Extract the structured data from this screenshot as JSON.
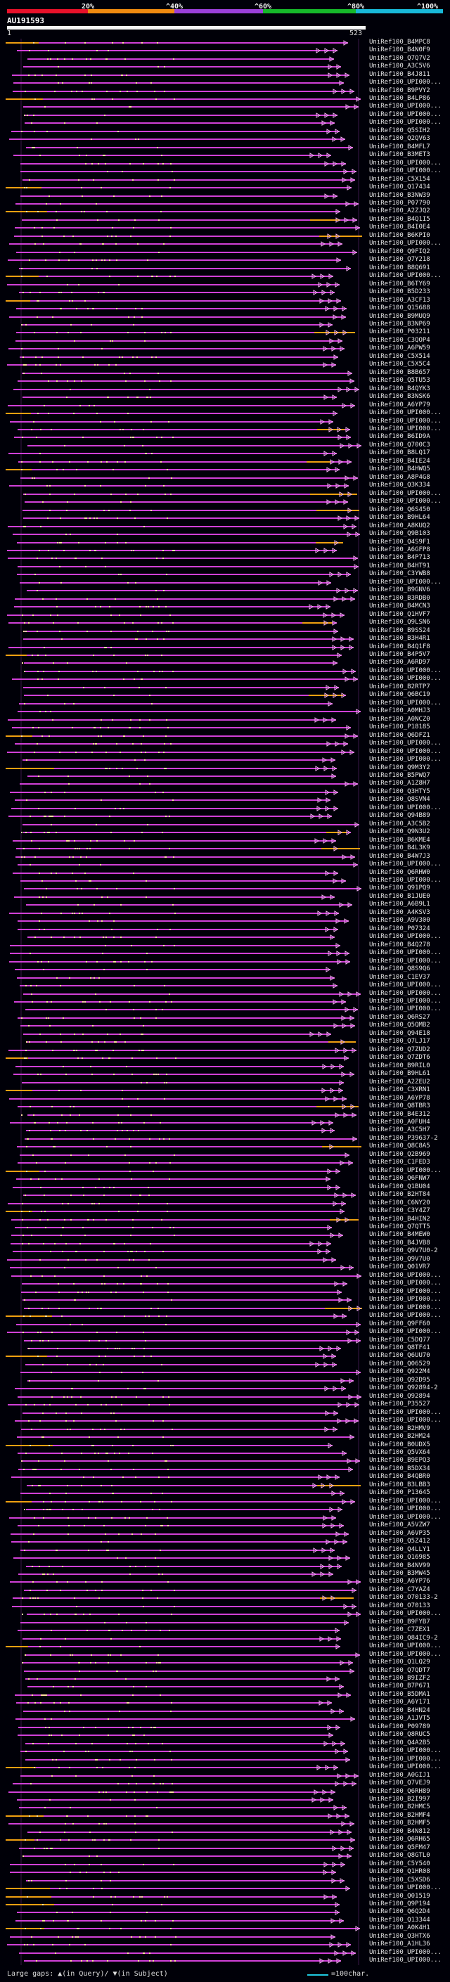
{
  "scale": {
    "ticks": [
      "20%",
      "^40%",
      "^60%",
      "^80%",
      "^100%"
    ],
    "colors": [
      "#e8112a",
      "#f08a10",
      "#9a40d8",
      "#16b82a",
      "#18b8d8"
    ]
  },
  "query": {
    "name": "AU191593",
    "start": "1",
    "end": "523"
  },
  "colors": {
    "hit_line": "#d040d8",
    "gap_in_subject": "#f0a010",
    "gap_in_query": "#c8b0ff",
    "dots": "#ffe0a0"
  },
  "hits": [
    "UniRef100_B4MPC8",
    "UniRef100_B4N0F9",
    "UniRef100_Q7Q7V2",
    "UniRef100_A3C5V6",
    "UniRef100_B4J811",
    "UniRef100_UPI000...",
    "UniRef100_B9PVY2",
    "UniRef100_B4LP86",
    "UniRef100_UPI000...",
    "UniRef100_UPI000...",
    "UniRef100_UPI000...",
    "UniRef100_Q5SIH2",
    "UniRef100_Q2QV63",
    "UniRef100_B4MFL7",
    "UniRef100_B3MET3",
    "UniRef100_UPI000...",
    "UniRef100_UPI000...",
    "UniRef100_C5X154",
    "UniRef100_Q17434",
    "UniRef100_B3NW39",
    "UniRef100_P07790",
    "UniRef100_A2ZJQ2",
    "UniRef100_B4Q1I5",
    "UniRef100_B4I0E4",
    "UniRef100_B6KPI0",
    "UniRef100_UPI000...",
    "UniRef100_Q9FIQ2",
    "UniRef100_Q7Y218",
    "UniRef100_B8Q691",
    "UniRef100_UPI000...",
    "UniRef100_B6TY69",
    "UniRef100_B5D233",
    "UniRef100_A3CF13",
    "UniRef100_Q15688",
    "UniRef100_B9MUQ9",
    "UniRef100_B3NP69",
    "UniRef100_P03211",
    "UniRef100_C3QOP4",
    "UniRef100_A6PW59",
    "UniRef100_C5X514",
    "UniRef100_C5X5C4",
    "UniRef100_B8B657",
    "UniRef100_Q5TU53",
    "UniRef100_B4QYK3",
    "UniRef100_B3NSK6",
    "UniRef100_A6YP79",
    "UniRef100_UPI000...",
    "UniRef100_UPI000...",
    "UniRef100_UPI000...",
    "UniRef100_B6ID9A",
    "UniRef100_Q700C3",
    "UniRef100_B8LQ17",
    "UniRef100_B4IE24",
    "UniRef100_B4HWQ5",
    "UniRef100_A8P4G8",
    "UniRef100_Q3K334",
    "UniRef100_UPI000...",
    "UniRef100_UPI000...",
    "UniRef100_Q6S450",
    "UniRef100_B9HL64",
    "UniRef100_A8KUQ2",
    "UniRef100_Q9B103",
    "UniRef100_Q4S9F1",
    "UniRef100_A6GFP8",
    "UniRef100_B4P713",
    "UniRef100_B4HT91",
    "UniRef100_C3YWB8",
    "UniRef100_UPI000...",
    "UniRef100_B9GNV6",
    "UniRef100_B3RDB0",
    "UniRef100_B4MCN3",
    "UniRef100_Q1HVF7",
    "UniRef100_Q9LSN6",
    "UniRef100_B9SS24",
    "UniRef100_B3H4R1",
    "UniRef100_B4Q1F8",
    "UniRef100_B4P5V7",
    "UniRef100_A6RD97",
    "UniRef100_UPI000...",
    "UniRef100_UPI000...",
    "UniRef100_B2RTP7",
    "UniRef100_Q6BC19",
    "UniRef100_UPI000...",
    "UniRef100_A0MHJ3",
    "UniRef100_A0NCZ0",
    "UniRef100_P18185",
    "UniRef100_Q6DFZ1",
    "UniRef100_UPI000...",
    "UniRef100_UPI000...",
    "UniRef100_UPI000...",
    "UniRef100_Q9M3Y2",
    "UniRef100_B5PWQ7",
    "UniRef100_A1Z8H7",
    "UniRef100_Q3HTY5",
    "UniRef100_Q8SVN4",
    "UniRef100_UPI000...",
    "UniRef100_Q94B89",
    "UniRef100_A3C5B2",
    "UniRef100_Q9N3U2",
    "UniRef100_B6KME4",
    "UniRef100_B4L3K9",
    "UniRef100_B4W7J3",
    "UniRef100_UPI000...",
    "UniRef100_Q6RHW0",
    "UniRef100_UPI000...",
    "UniRef100_Q91PQ9",
    "UniRef100_B1JUE0",
    "UniRef100_A6B9L1",
    "UniRef100_A4KSV3",
    "UniRef100_A9V300",
    "UniRef100_P07324",
    "UniRef100_UPI000...",
    "UniRef100_B4Q278",
    "UniRef100_UPI000...",
    "UniRef100_UPI000...",
    "UniRef100_Q8S9Q6",
    "UniRef100_C1EV37",
    "UniRef100_UPI000...",
    "UniRef100_UPI000...",
    "UniRef100_UPI000...",
    "UniRef100_UPI000...",
    "UniRef100_Q6RS27",
    "UniRef100_Q5QMB2",
    "UniRef100_Q94E18",
    "UniRef100_Q7LJ17",
    "UniRef100_Q7ZUD2",
    "UniRef100_Q7ZDT6",
    "UniRef100_B9RIL0",
    "UniRef100_B9HL61",
    "UniRef100_A2ZEU2",
    "UniRef100_C3XRN1",
    "UniRef100_A6YP78",
    "UniRef100_Q8TBR3",
    "UniRef100_B4E312",
    "UniRef100_A0FUH4",
    "UniRef100_A3C5H7",
    "UniRef100_P39637-2",
    "UniRef100_Q8C8A5",
    "UniRef100_Q2B969",
    "UniRef100_C1FED3",
    "UniRef100_UPI000...",
    "UniRef100_Q6FNW7",
    "UniRef100_Q1BU04",
    "UniRef100_B2HT84",
    "UniRef100_C6NY20",
    "UniRef100_C3Y4Z7",
    "UniRef100_B4HIN2",
    "UniRef100_Q7QTT5",
    "UniRef100_B4MEW0",
    "UniRef100_B4JVB8",
    "UniRef100_Q9V7U0-2",
    "UniRef100_Q9V7U0",
    "UniRef100_Q01VR7",
    "UniRef100_UPI000...",
    "UniRef100_UPI000...",
    "UniRef100_UPI000...",
    "UniRef100_UPI000...",
    "UniRef100_UPI000...",
    "UniRef100_UPI000...",
    "UniRef100_Q9FF60",
    "UniRef100_UPI000...",
    "UniRef100_C5DQ77",
    "UniRef100_Q8TF41",
    "UniRef100_Q6UU70",
    "UniRef100_Q06529",
    "UniRef100_Q922M4",
    "UniRef100_Q92D95",
    "UniRef100_Q92894-2",
    "UniRef100_Q92894",
    "UniRef100_P35527",
    "UniRef100_UPI000...",
    "UniRef100_UPI000...",
    "UniRef100_B2HMV9",
    "UniRef100_B2HM24",
    "UniRef100_B0UDX5",
    "UniRef100_Q5VX64",
    "UniRef100_B9EPQ3",
    "UniRef100_B5DX34",
    "UniRef100_B4QBR0",
    "UniRef100_B3LBB3",
    "UniRef100_P13645",
    "UniRef100_UPI000...",
    "UniRef100_UPI000...",
    "UniRef100_UPI000...",
    "UniRef100_A5VZW7",
    "UniRef100_A6VP35",
    "UniRef100_Q5Z412",
    "UniRef100_Q4LLY1",
    "UniRef100_Q16985",
    "UniRef100_B4NV99",
    "UniRef100_B3MW45",
    "UniRef100_A6YP76",
    "UniRef100_C7YAZ4",
    "UniRef100_O70133-2",
    "UniRef100_O70133",
    "UniRef100_UPI000...",
    "UniRef100_B9FYB7",
    "UniRef100_C7ZEX1",
    "UniRef100_Q84IC9-2",
    "UniRef100_UPI000...",
    "UniRef100_UPI000...",
    "UniRef100_Q1LQ29",
    "UniRef100_Q7QDT7",
    "UniRef100_B9IZF2",
    "UniRef100_B7P671",
    "UniRef100_B5DMA1",
    "UniRef100_A6Y171",
    "UniRef100_B4HN24",
    "UniRef100_A1JVT5",
    "UniRef100_P09789",
    "UniRef100_Q8RUC5",
    "UniRef100_Q4A2B5",
    "UniRef100_UPI000...",
    "UniRef100_UPI000...",
    "UniRef100_UPI000...",
    "UniRef100_A0GIJ1",
    "UniRef100_Q7VEJ9",
    "UniRef100_Q6RH89",
    "UniRef100_B2I997",
    "UniRef100_B2HMC5",
    "UniRef100_B2HMF4",
    "UniRef100_B2HMF5",
    "UniRef100_B4N812",
    "UniRef100_Q6RH65",
    "UniRef100_Q5FM47",
    "UniRef100_Q8GTL0",
    "UniRef100_C5Y540",
    "UniRef100_Q1HR08",
    "UniRef100_C5XSD6",
    "UniRef100_UPI000...",
    "UniRef100_Q01519",
    "UniRef100_Q9P194",
    "UniRef100_Q6Q2D4",
    "UniRef100_Q13344",
    "UniRef100_A0K4H1",
    "UniRef100_Q3HTX6",
    "UniRef100_A1HL36",
    "UniRef100_UPI000...",
    "UniRef100_UPI000..."
  ],
  "legend": {
    "text": "Large gaps: ▲(in Query)/ ▼(in Subject)",
    "scale_label": "=100char."
  }
}
